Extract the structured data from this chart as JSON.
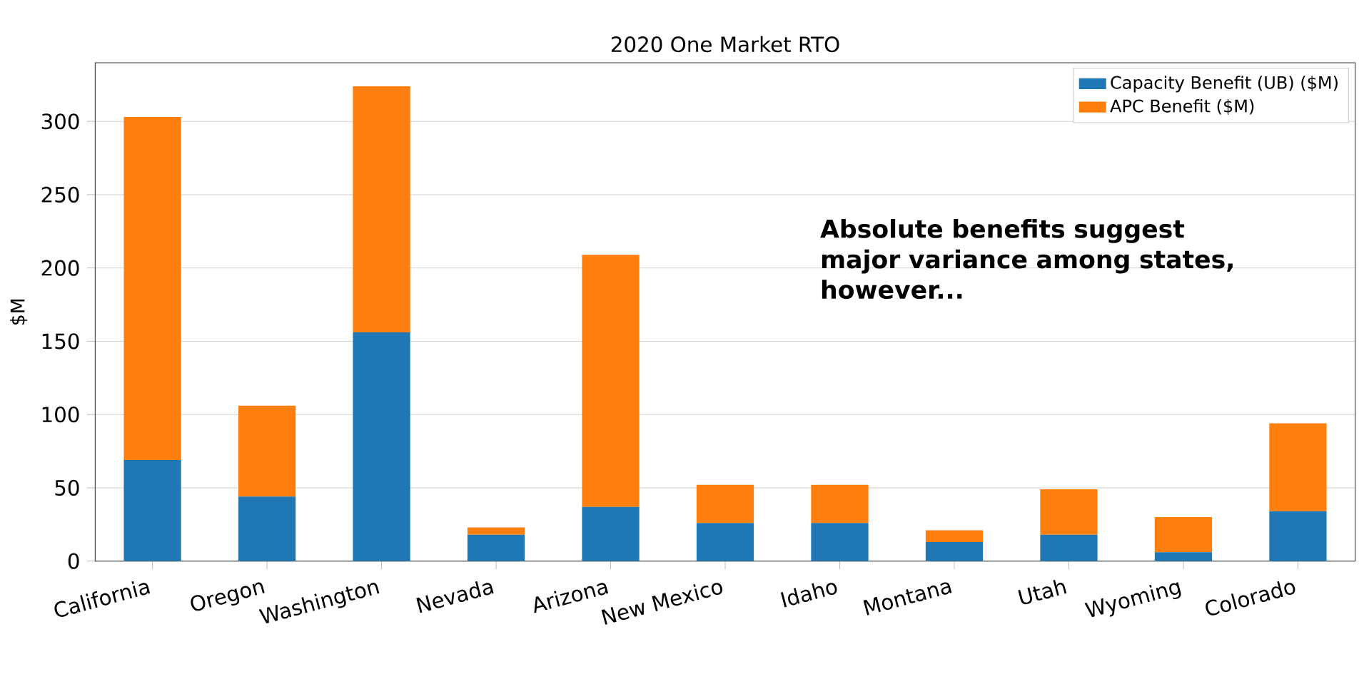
{
  "chart_data": {
    "type": "bar",
    "title": "2020 One Market RTO",
    "ylabel": "$M",
    "stacked": true,
    "categories": [
      "California",
      "Oregon",
      "Washington",
      "Nevada",
      "Arizona",
      "New Mexico",
      "Idaho",
      "Montana",
      "Utah",
      "Wyoming",
      "Colorado"
    ],
    "series": [
      {
        "name": "Capacity Benefit (UB) ($M)",
        "color": "#1f77b4",
        "values": [
          69,
          44,
          156,
          18,
          37,
          26,
          26,
          13,
          18,
          6,
          34
        ]
      },
      {
        "name": "APC Benefit ($M)",
        "color": "#ff7f0e",
        "values": [
          234,
          62,
          168,
          5,
          172,
          26,
          26,
          8,
          31,
          24,
          60
        ]
      }
    ],
    "ylim": [
      0,
      340
    ],
    "yticks": [
      0,
      50,
      100,
      150,
      200,
      250,
      300
    ],
    "grid": "y",
    "legend": "top right",
    "annotations": [
      "Absolute benefits suggest major variance among states, however..."
    ]
  }
}
